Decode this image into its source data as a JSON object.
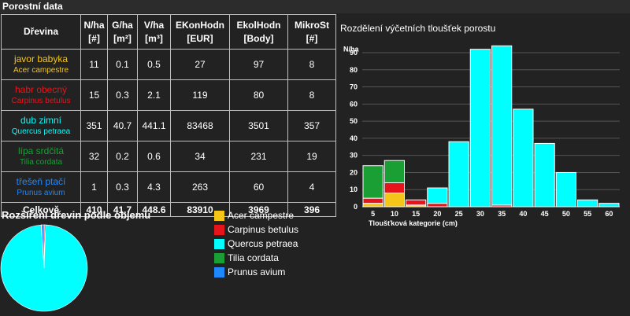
{
  "header": {
    "title": "Porostní data"
  },
  "table": {
    "headers": [
      {
        "line1": "Dřevina",
        "line2": ""
      },
      {
        "line1": "N/ha",
        "line2": "[#]"
      },
      {
        "line1": "G/ha",
        "line2": "[m²]"
      },
      {
        "line1": "V/ha",
        "line2": "[m³]"
      },
      {
        "line1": "EKonHodn",
        "line2": "[EUR]"
      },
      {
        "line1": "EkolHodn",
        "line2": "[Body]"
      },
      {
        "line1": "MikroSt",
        "line2": "[#]"
      }
    ],
    "rows": [
      {
        "czech": "javor babyka",
        "latin": "Acer campestre",
        "color": "#f5c518",
        "values": [
          "11",
          "0.1",
          "0.5",
          "27",
          "97",
          "8"
        ]
      },
      {
        "czech": "habr obecný",
        "latin": "Carpinus betulus",
        "color": "#e8141b",
        "values": [
          "15",
          "0.3",
          "2.1",
          "119",
          "80",
          "8"
        ]
      },
      {
        "czech": "dub zimní",
        "latin": "Quercus petraea",
        "color": "#00ffff",
        "values": [
          "351",
          "40.7",
          "441.1",
          "83468",
          "3501",
          "357"
        ]
      },
      {
        "czech": "lípa srdčitá",
        "latin": "Tilia cordata",
        "color": "#1a9f35",
        "values": [
          "32",
          "0.2",
          "0.6",
          "34",
          "231",
          "19"
        ]
      },
      {
        "czech": "třešeň ptačí",
        "latin": "Prunus avium",
        "color": "#1e88ff",
        "values": [
          "1",
          "0.3",
          "4.3",
          "263",
          "60",
          "4"
        ]
      }
    ],
    "total": {
      "label": "Celkově",
      "values": [
        "410",
        "41.7",
        "448.6",
        "83910",
        "3969",
        "396"
      ]
    }
  },
  "pie": {
    "title": "Rozšíření dřevin podle objemu",
    "slices": [
      {
        "name": "Acer campestre",
        "value": 0.5,
        "color": "#f5c518"
      },
      {
        "name": "Carpinus betulus",
        "value": 2.1,
        "color": "#e8141b"
      },
      {
        "name": "Quercus petraea",
        "value": 441.1,
        "color": "#00ffff"
      },
      {
        "name": "Tilia cordata",
        "value": 0.6,
        "color": "#1a9f35"
      },
      {
        "name": "Prunus avium",
        "value": 4.3,
        "color": "#1e88ff"
      }
    ]
  },
  "legend": [
    {
      "label": "Acer campestre",
      "color": "#f5c518"
    },
    {
      "label": "Carpinus betulus",
      "color": "#e8141b"
    },
    {
      "label": "Quercus petraea",
      "color": "#00ffff"
    },
    {
      "label": "Tilia cordata",
      "color": "#1a9f35"
    },
    {
      "label": "Prunus avium",
      "color": "#1e88ff"
    }
  ],
  "chart_data": {
    "type": "bar",
    "stacked": true,
    "title": "Rozdělení výčetních tloušťek porostu",
    "ylabel": "N/ha",
    "xlabel": "Tloušťková kategorie (cm)",
    "ylim": [
      0,
      90
    ],
    "yticks": [
      0,
      10,
      20,
      30,
      40,
      50,
      60,
      70,
      80,
      90
    ],
    "grid": true,
    "categories": [
      "5",
      "10",
      "15",
      "20",
      "25",
      "30",
      "35",
      "40",
      "45",
      "50",
      "55",
      "60"
    ],
    "series": [
      {
        "name": "Acer campestre",
        "color": "#f5c518",
        "values": [
          2,
          8,
          1,
          0,
          0,
          0,
          0,
          0,
          0,
          0,
          0,
          0
        ]
      },
      {
        "name": "Carpinus betulus",
        "color": "#e8141b",
        "values": [
          3,
          6,
          3,
          2,
          0,
          0,
          1,
          0,
          0,
          0,
          0,
          0
        ]
      },
      {
        "name": "Quercus petraea",
        "color": "#00ffff",
        "values": [
          0,
          0,
          0,
          9,
          38,
          92,
          93,
          57,
          37,
          20,
          4,
          2
        ]
      },
      {
        "name": "Tilia cordata",
        "color": "#1a9f35",
        "values": [
          19,
          13,
          0,
          0,
          0,
          0,
          0,
          0,
          0,
          0,
          0,
          0
        ]
      },
      {
        "name": "Prunus avium",
        "color": "#1e88ff",
        "values": [
          0,
          0,
          0,
          0,
          0,
          0,
          0,
          0,
          0,
          0,
          0,
          0
        ]
      }
    ]
  }
}
